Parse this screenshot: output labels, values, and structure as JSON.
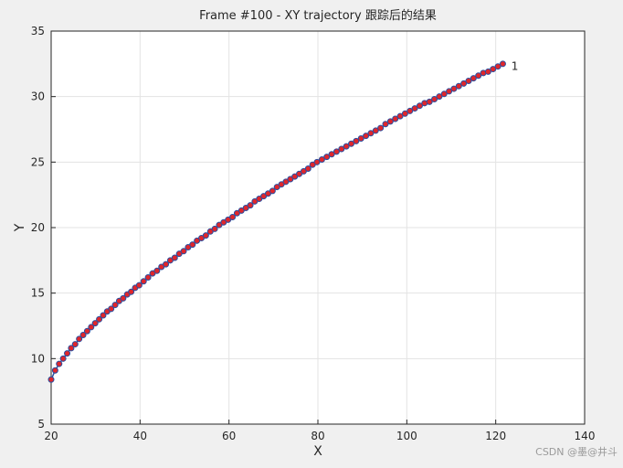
{
  "chart_data": {
    "type": "line",
    "title": "Frame #100 - XY trajectory 跟踪后的结果",
    "xlabel": "X",
    "ylabel": "Y",
    "x": [
      20,
      20.9,
      21.8,
      22.7,
      23.6,
      24.5,
      25.4,
      26.3,
      27.2,
      28.1,
      29.0,
      29.9,
      30.8,
      31.7,
      32.6,
      33.5,
      34.4,
      35.3,
      36.2,
      37.1,
      38.0,
      38.9,
      39.8,
      40.8,
      41.8,
      42.8,
      43.8,
      44.8,
      45.8,
      46.8,
      47.8,
      48.8,
      49.8,
      50.8,
      51.8,
      52.8,
      53.8,
      54.8,
      55.8,
      56.8,
      57.8,
      58.8,
      59.8,
      60.8,
      61.8,
      62.8,
      63.8,
      64.8,
      65.8,
      66.8,
      67.8,
      68.8,
      69.8,
      70.8,
      71.8,
      72.8,
      73.8,
      74.8,
      75.8,
      76.8,
      77.8,
      78.8,
      79.8,
      80.9,
      82,
      83.1,
      84.2,
      85.3,
      86.4,
      87.5,
      88.6,
      89.7,
      90.8,
      91.9,
      93,
      94.1,
      95.2,
      96.3,
      97.4,
      98.5,
      99.6,
      100.7,
      101.8,
      102.9,
      104,
      105.1,
      106.2,
      107.3,
      108.4,
      109.5,
      110.6,
      111.7,
      112.8,
      113.9,
      115,
      116.1,
      117.2,
      118.3,
      119.4,
      120.5,
      121.6
    ],
    "values": [
      8.4,
      9.1,
      9.6,
      10.0,
      10.4,
      10.8,
      11.1,
      11.5,
      11.8,
      12.1,
      12.4,
      12.7,
      13.0,
      13.3,
      13.6,
      13.8,
      14.1,
      14.4,
      14.6,
      14.9,
      15.1,
      15.4,
      15.6,
      15.9,
      16.2,
      16.5,
      16.7,
      17.0,
      17.2,
      17.5,
      17.7,
      18.0,
      18.2,
      18.5,
      18.7,
      19.0,
      19.2,
      19.4,
      19.7,
      19.9,
      20.2,
      20.4,
      20.6,
      20.8,
      21.1,
      21.3,
      21.5,
      21.7,
      22.0,
      22.2,
      22.4,
      22.6,
      22.8,
      23.1,
      23.3,
      23.5,
      23.7,
      23.9,
      24.1,
      24.3,
      24.5,
      24.8,
      25.0,
      25.2,
      25.4,
      25.6,
      25.8,
      26.0,
      26.2,
      26.4,
      26.6,
      26.8,
      27.0,
      27.2,
      27.4,
      27.6,
      27.9,
      28.1,
      28.3,
      28.5,
      28.7,
      28.9,
      29.1,
      29.3,
      29.5,
      29.6,
      29.8,
      30.0,
      30.2,
      30.4,
      30.6,
      30.8,
      31.0,
      31.2,
      31.4,
      31.6,
      31.8,
      31.9,
      32.1,
      32.3,
      32.5
    ],
    "color": "#2b4fa0",
    "marker_color": "#e0262b",
    "xlim": [
      20,
      140
    ],
    "xticks": [
      20,
      40,
      60,
      80,
      100,
      120,
      140
    ],
    "ylim": [
      5,
      35
    ],
    "yticks": [
      5,
      10,
      15,
      20,
      25,
      30,
      35
    ],
    "grid": true,
    "annotations": [
      {
        "text": "1",
        "x": 123.5,
        "y": 32.3
      }
    ]
  },
  "watermark": "CSDN @墨@井斗"
}
